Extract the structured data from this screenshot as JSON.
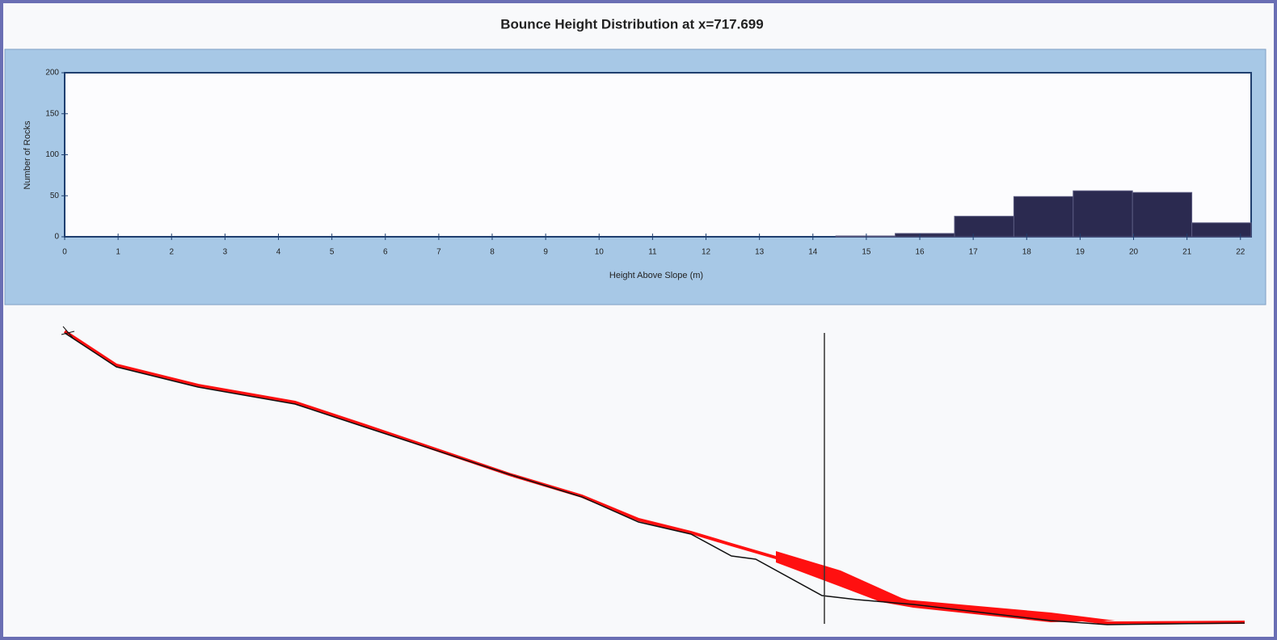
{
  "chart_data": {
    "type": "histogram",
    "title": "Bounce Height Distribution at x=717.699",
    "x_label": "Height Above Slope (m)",
    "y_label": "Number of Rocks",
    "bins": [
      14.43,
      15.54,
      16.65,
      17.76,
      18.87,
      19.98,
      21.09,
      22.2
    ],
    "values": [
      1,
      4,
      25,
      49,
      56,
      54,
      17
    ],
    "color": "#2b2a50",
    "xlim": [
      0,
      22.2
    ],
    "xticks": [
      0,
      1,
      2,
      3,
      4,
      5,
      6,
      7,
      8,
      9,
      10,
      11,
      12,
      13,
      14,
      15,
      16,
      17,
      18,
      19,
      20,
      21,
      22
    ],
    "ylim": [
      0,
      200
    ],
    "yticks": [
      0,
      50,
      100,
      150,
      200
    ]
  }
}
